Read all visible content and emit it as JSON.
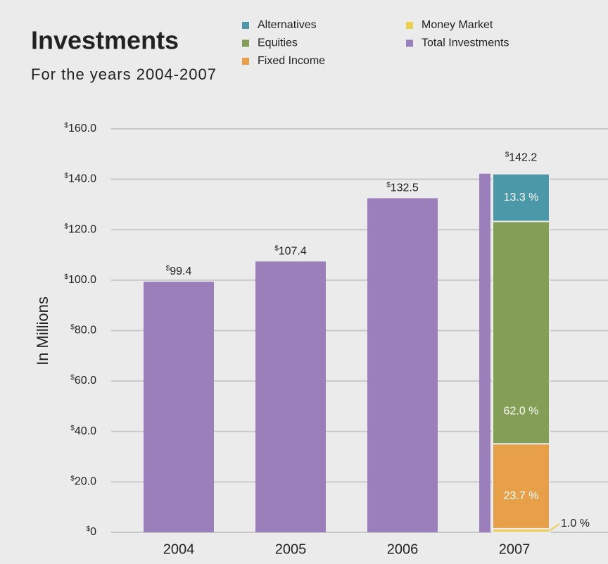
{
  "chart_data": {
    "type": "bar",
    "title": "Investments",
    "subtitle": "For the years 2004-2007",
    "y_label": "In Millions",
    "categories": [
      "2004",
      "2005",
      "2006",
      "2007"
    ],
    "series": [
      {
        "name": "Total Investments",
        "color": "#9b7fbb",
        "values": [
          99.4,
          107.4,
          132.5,
          142.2
        ],
        "value_labels": [
          "$99.4",
          "$107.4",
          "$132.5",
          "$142.2"
        ]
      },
      {
        "name": "Money Market",
        "color": "#ecd04c",
        "stack": "percent",
        "values": [
          null,
          null,
          null,
          1.0
        ],
        "value_labels": [
          null,
          null,
          null,
          "1.0 %"
        ]
      },
      {
        "name": "Fixed Income",
        "color": "#e7a047",
        "stack": "percent",
        "values": [
          null,
          null,
          null,
          23.7
        ],
        "value_labels": [
          null,
          null,
          null,
          "23.7 %"
        ]
      },
      {
        "name": "Equities",
        "color": "#829f55",
        "stack": "percent",
        "values": [
          null,
          null,
          null,
          62.0
        ],
        "value_labels": [
          null,
          null,
          null,
          "62.0 %"
        ]
      },
      {
        "name": "Alternatives",
        "color": "#4a98a8",
        "stack": "percent",
        "values": [
          null,
          null,
          null,
          13.3
        ],
        "value_labels": [
          null,
          null,
          null,
          "13.3 %"
        ]
      }
    ],
    "ylim": [
      0,
      160
    ],
    "yticks": [
      {
        "value": 0,
        "label": "$0"
      },
      {
        "value": 20,
        "label": "$20.0"
      },
      {
        "value": 40,
        "label": "$40.0"
      },
      {
        "value": 60,
        "label": "$60.0"
      },
      {
        "value": 80,
        "label": "$80.0"
      },
      {
        "value": 100,
        "label": "$100.0"
      },
      {
        "value": 120,
        "label": "$120.0"
      },
      {
        "value": 140,
        "label": "$140.0"
      },
      {
        "value": 160,
        "label": "$160.0"
      }
    ],
    "grid": true
  }
}
